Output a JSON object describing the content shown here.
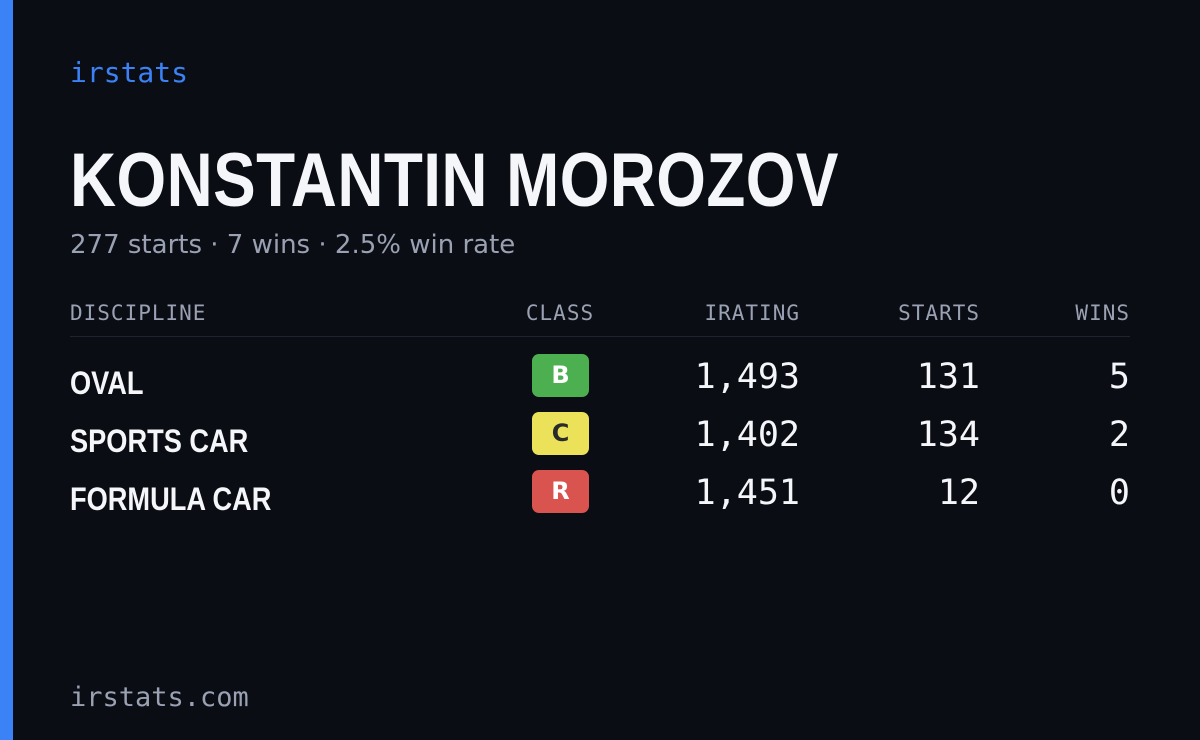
{
  "brand": {
    "name": "irstats",
    "url": "irstats.com"
  },
  "colors": {
    "background": "#0b0d14",
    "accent": "#3b82f6",
    "muted": "#9aa1b2",
    "class_b": "#4caf50",
    "class_c": "#ece25a",
    "class_r": "#d9534f"
  },
  "driver": {
    "name": "KONSTANTIN MOROZOV",
    "summary": "277 starts · 7 wins · 2.5% win rate"
  },
  "table": {
    "headers": {
      "discipline": "DISCIPLINE",
      "class": "CLASS",
      "irating": "IRATING",
      "starts": "STARTS",
      "wins": "WINS"
    },
    "rows": [
      {
        "discipline": "OVAL",
        "class": "B",
        "class_color": "#4caf50",
        "class_text_color": "#ffffff",
        "irating": "1,493",
        "starts": "131",
        "wins": "5"
      },
      {
        "discipline": "SPORTS CAR",
        "class": "C",
        "class_color": "#ece25a",
        "class_text_color": "#2a2a2a",
        "irating": "1,402",
        "starts": "134",
        "wins": "2"
      },
      {
        "discipline": "FORMULA CAR",
        "class": "R",
        "class_color": "#d9534f",
        "class_text_color": "#ffffff",
        "irating": "1,451",
        "starts": "12",
        "wins": "0"
      }
    ]
  }
}
